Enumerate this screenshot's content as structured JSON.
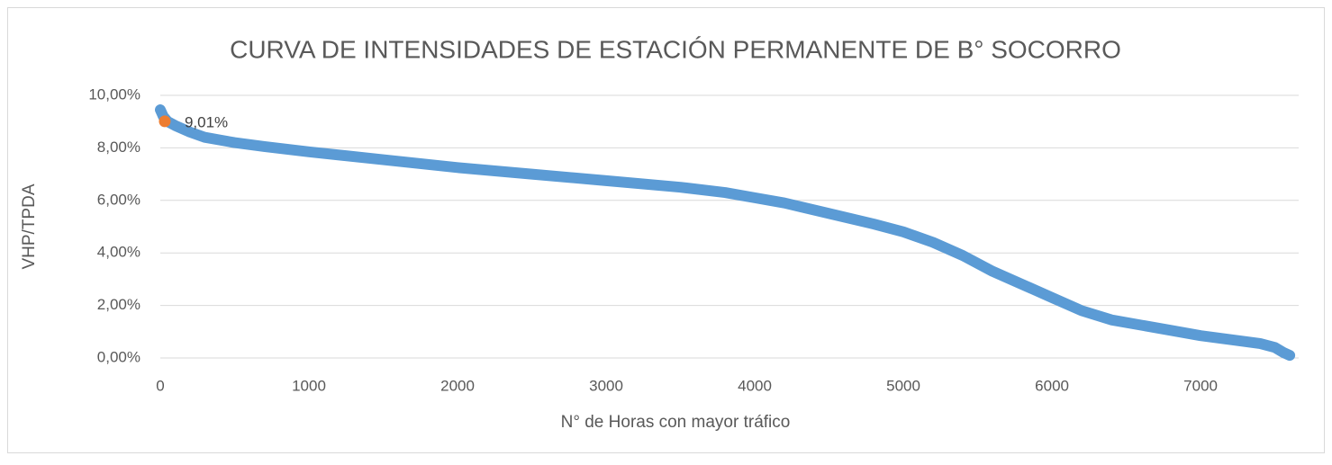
{
  "chart_data": {
    "type": "scatter",
    "title": "CURVA DE INTENSIDADES DE ESTACIÓN PERMANENTE DE B° SOCORRO",
    "x_label": "N° de Horas con mayor tráfico",
    "y_label": "VHP/TPDA",
    "xlim": [
      0,
      7660
    ],
    "xticks": [
      0,
      1000,
      2000,
      3000,
      4000,
      5000,
      6000,
      7000
    ],
    "ylim": [
      0,
      10
    ],
    "yticks": [
      {
        "value": 0,
        "label": "0,00%"
      },
      {
        "value": 2,
        "label": "2,00%"
      },
      {
        "value": 4,
        "label": "4,00%"
      },
      {
        "value": 6,
        "label": "6,00%"
      },
      {
        "value": 8,
        "label": "8,00%"
      },
      {
        "value": 10,
        "label": "10,00%"
      }
    ],
    "grid": true,
    "series": [
      {
        "color": "#5b9bd5",
        "x": [
          0,
          20,
          50,
          100,
          200,
          300,
          400,
          500,
          700,
          1000,
          1500,
          2000,
          2500,
          3000,
          3500,
          3800,
          4000,
          4200,
          4500,
          4800,
          5000,
          5200,
          5400,
          5600,
          5800,
          6000,
          6200,
          6400,
          6600,
          6800,
          7000,
          7200,
          7400,
          7500,
          7560,
          7600
        ],
        "values": [
          9.45,
          9.2,
          9.0,
          8.85,
          8.6,
          8.4,
          8.3,
          8.2,
          8.05,
          7.85,
          7.55,
          7.25,
          7.0,
          6.75,
          6.5,
          6.3,
          6.1,
          5.9,
          5.5,
          5.1,
          4.8,
          4.4,
          3.9,
          3.3,
          2.8,
          2.3,
          1.8,
          1.45,
          1.25,
          1.05,
          0.85,
          0.7,
          0.55,
          0.4,
          0.2,
          0.1
        ]
      },
      {
        "color": "#ed7d31",
        "x": [
          30
        ],
        "values": [
          9.01
        ],
        "value_labels": [
          "9,01%"
        ]
      }
    ]
  }
}
